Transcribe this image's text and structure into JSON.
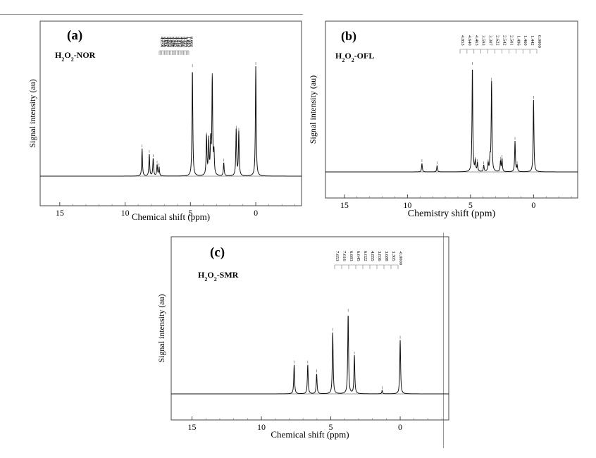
{
  "chart_data": [
    {
      "type": "line",
      "panel_label": "(a)",
      "sample_label": {
        "prefix": "H",
        "sub1": "2",
        "mid": "O",
        "sub2": "2",
        "suffix": "-NOR"
      },
      "xlabel": "Chemical shift (ppm)",
      "ylabel": "Signal intensity (au)",
      "xlim": [
        16.5,
        -3.5
      ],
      "ylim": [
        0,
        1
      ],
      "x_ticks": [
        15,
        10,
        5,
        0
      ],
      "peak_labels": [
        "4.854",
        "3.772",
        "3.750",
        "3.611",
        "3.602",
        "3.564",
        "3.532",
        "3.505",
        "3.478",
        "3.449",
        "3.442",
        "3.425",
        "3.419",
        "3.416",
        "3.413",
        "3.409",
        "3.386",
        "3.382",
        "3.377",
        "3.373",
        "1.622",
        "1.413",
        "1.225",
        "0.002"
      ],
      "peaks": [
        {
          "x": 8.7,
          "y": 0.25
        },
        {
          "x": 8.15,
          "y": 0.2
        },
        {
          "x": 7.85,
          "y": 0.16
        },
        {
          "x": 7.55,
          "y": 0.1
        },
        {
          "x": 7.4,
          "y": 0.08
        },
        {
          "x": 4.85,
          "y": 0.98
        },
        {
          "x": 3.77,
          "y": 0.36
        },
        {
          "x": 3.6,
          "y": 0.32
        },
        {
          "x": 3.45,
          "y": 0.3
        },
        {
          "x": 3.33,
          "y": 0.89
        },
        {
          "x": 3.2,
          "y": 0.2
        },
        {
          "x": 2.45,
          "y": 0.12
        },
        {
          "x": 1.5,
          "y": 0.42
        },
        {
          "x": 1.3,
          "y": 0.4
        },
        {
          "x": 0.0,
          "y": 1.0
        }
      ]
    },
    {
      "type": "line",
      "panel_label": "(b)",
      "sample_label": {
        "prefix": "H",
        "sub1": "2",
        "mid": "O",
        "sub2": "2",
        "suffix": "-OFL"
      },
      "xlabel": "Chemistry shift (ppm)",
      "ylabel": "Signal intensity (au)",
      "xlim": [
        16.5,
        -3.5
      ],
      "ylim": [
        0,
        1
      ],
      "x_ticks": [
        15,
        10,
        5,
        0
      ],
      "peak_labels": [
        "4.853",
        "4.640",
        "4.463",
        "3.593",
        "3.307",
        "2.622",
        "2.542",
        "2.501",
        "1.496",
        "1.460",
        "1.442",
        "0.0000"
      ],
      "peaks": [
        {
          "x": 8.85,
          "y": 0.08
        },
        {
          "x": 7.65,
          "y": 0.06
        },
        {
          "x": 4.85,
          "y": 1.0
        },
        {
          "x": 4.62,
          "y": 0.1
        },
        {
          "x": 4.45,
          "y": 0.08
        },
        {
          "x": 3.95,
          "y": 0.06
        },
        {
          "x": 3.6,
          "y": 0.08
        },
        {
          "x": 3.33,
          "y": 0.85
        },
        {
          "x": 3.45,
          "y": 0.12
        },
        {
          "x": 2.62,
          "y": 0.1
        },
        {
          "x": 2.5,
          "y": 0.12
        },
        {
          "x": 1.47,
          "y": 0.29
        },
        {
          "x": 1.3,
          "y": 0.06
        },
        {
          "x": 0.0,
          "y": 0.68
        }
      ]
    },
    {
      "type": "line",
      "panel_label": "(c)",
      "sample_label": {
        "prefix": "H",
        "sub1": "2",
        "mid": "O",
        "sub2": "2",
        "suffix": "-SMR"
      },
      "xlabel": "Chemical shift (ppm)",
      "ylabel": "Signal intensity (au)",
      "xlim": [
        16.5,
        -3.5
      ],
      "ylim": [
        0,
        1
      ],
      "x_ticks": [
        15,
        10,
        5,
        0
      ],
      "peak_labels": [
        "7.653",
        "7.616",
        "6.683",
        "6.645",
        "6.022",
        "4.855",
        "3.836",
        "3.688",
        "3.305",
        "-0.0000"
      ],
      "peaks": [
        {
          "x": 7.64,
          "y": 0.26
        },
        {
          "x": 6.66,
          "y": 0.26
        },
        {
          "x": 6.02,
          "y": 0.18
        },
        {
          "x": 4.86,
          "y": 0.55
        },
        {
          "x": 3.75,
          "y": 0.72
        },
        {
          "x": 3.3,
          "y": 0.34
        },
        {
          "x": 1.3,
          "y": 0.03
        },
        {
          "x": 0.0,
          "y": 0.48
        }
      ]
    }
  ]
}
